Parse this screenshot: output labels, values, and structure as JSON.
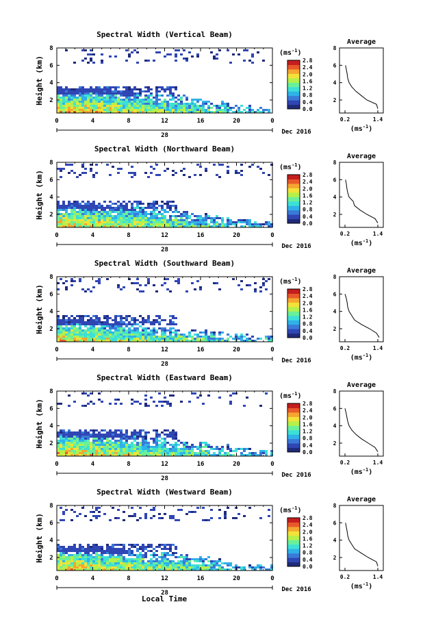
{
  "figure": {
    "xlabel": "Local Time",
    "day_label": "28",
    "month_label": "Dec 2016",
    "ylabel": "Height (km)",
    "colorbar_unit": "(ms",
    "colorbar_unit_exp": "-1",
    "avg_title": "Average",
    "avg_unit": "(ms",
    "avg_unit_exp": "-1",
    "avg_unit_close": ")",
    "colormap": [
      "#1f2a7a",
      "#2f46b4",
      "#3a7ad8",
      "#2fb2e8",
      "#3de0d6",
      "#6af09a",
      "#b6f04a",
      "#f2e23a",
      "#f5a630",
      "#e9592a",
      "#c41e1e"
    ]
  },
  "chart_data": [
    {
      "type": "heatmap",
      "title": "Spectral Width (Vertical Beam)",
      "x_ticks": [
        "0",
        "4",
        "8",
        "12",
        "16",
        "20",
        "0"
      ],
      "y_ticks": [
        "2",
        "4",
        "6",
        "8"
      ],
      "xlim": [
        0,
        24
      ],
      "ylim": [
        0.5,
        8
      ],
      "cbar_ticks": [
        "0.0",
        "0.4",
        "0.8",
        "1.2",
        "1.6",
        "2.0",
        "2.4",
        "2.8"
      ],
      "cbar_range": [
        0,
        2.8
      ],
      "layer_top_km": [
        3.4,
        3.4,
        3.3,
        3.1,
        2.8,
        2.6,
        2.2,
        1.9,
        1.5,
        1.2
      ],
      "upper_cloud": true,
      "avg_x_ticks": [
        "0.2",
        "1.4"
      ],
      "avg_y_ticks": [
        "2",
        "4",
        "6",
        "8"
      ],
      "avg_xlim": [
        0,
        1.6
      ],
      "avg_profile_km": [
        1.0,
        1.5,
        2.0,
        2.5,
        3.0,
        3.5,
        4.0,
        4.5,
        5.0,
        5.5,
        6.0
      ],
      "avg_profile_val": [
        1.4,
        1.35,
        1.0,
        0.8,
        0.6,
        0.45,
        0.35,
        0.3,
        0.28,
        0.25,
        0.22
      ]
    },
    {
      "type": "heatmap",
      "title": "Spectral Width (Northward Beam)",
      "x_ticks": [
        "0",
        "4",
        "8",
        "12",
        "16",
        "20",
        "0"
      ],
      "y_ticks": [
        "2",
        "4",
        "6",
        "8"
      ],
      "xlim": [
        0,
        24
      ],
      "ylim": [
        0.5,
        8
      ],
      "cbar_ticks": [
        "0.0",
        "0.4",
        "0.8",
        "1.2",
        "1.6",
        "2.0",
        "2.4",
        "2.8"
      ],
      "cbar_range": [
        0,
        2.8
      ],
      "layer_top_km": [
        3.4,
        3.3,
        3.1,
        3.0,
        2.8,
        2.5,
        2.1,
        1.8,
        1.5,
        1.2
      ],
      "upper_cloud": true,
      "avg_x_ticks": [
        "0.2",
        "1.4"
      ],
      "avg_y_ticks": [
        "2",
        "4",
        "6",
        "8"
      ],
      "avg_xlim": [
        0,
        1.6
      ],
      "avg_profile_km": [
        1.0,
        1.5,
        2.0,
        2.5,
        3.0,
        3.5,
        4.0,
        4.5,
        5.0,
        5.5,
        6.0
      ],
      "avg_profile_val": [
        1.4,
        1.3,
        1.0,
        0.75,
        0.55,
        0.5,
        0.35,
        0.3,
        0.27,
        0.25,
        0.22
      ]
    },
    {
      "type": "heatmap",
      "title": "Spectral Width (Southward Beam)",
      "x_ticks": [
        "0",
        "4",
        "8",
        "12",
        "16",
        "20",
        "0"
      ],
      "y_ticks": [
        "2",
        "4",
        "6",
        "8"
      ],
      "xlim": [
        0,
        24
      ],
      "ylim": [
        0.5,
        8
      ],
      "cbar_ticks": [
        "0.0",
        "0.4",
        "0.8",
        "1.2",
        "1.6",
        "2.0",
        "2.4",
        "2.8"
      ],
      "cbar_range": [
        0,
        2.8
      ],
      "layer_top_km": [
        3.2,
        3.0,
        2.8,
        2.6,
        2.4,
        2.2,
        2.0,
        1.8,
        1.5,
        1.3
      ],
      "upper_cloud": true,
      "avg_x_ticks": [
        "0.2",
        "1.4"
      ],
      "avg_y_ticks": [
        "2",
        "4",
        "6",
        "8"
      ],
      "avg_xlim": [
        0,
        1.6
      ],
      "avg_profile_km": [
        1.0,
        1.5,
        2.0,
        2.5,
        3.0,
        3.5,
        4.0,
        4.5,
        5.0,
        5.5,
        6.0
      ],
      "avg_profile_val": [
        1.45,
        1.35,
        1.1,
        0.8,
        0.55,
        0.45,
        0.35,
        0.3,
        0.28,
        0.25,
        0.2
      ]
    },
    {
      "type": "heatmap",
      "title": "Spectral Width (Eastward Beam)",
      "x_ticks": [
        "0",
        "4",
        "8",
        "12",
        "16",
        "20",
        "0"
      ],
      "y_ticks": [
        "2",
        "4",
        "6",
        "8"
      ],
      "xlim": [
        0,
        24
      ],
      "ylim": [
        0.5,
        8
      ],
      "cbar_ticks": [
        "0.0",
        "0.4",
        "0.8",
        "1.2",
        "1.6",
        "2.0",
        "2.4",
        "2.8"
      ],
      "cbar_range": [
        0,
        2.8
      ],
      "layer_top_km": [
        3.5,
        3.4,
        3.3,
        3.0,
        2.8,
        2.4,
        2.1,
        1.8,
        1.5,
        1.3
      ],
      "upper_cloud": true,
      "avg_x_ticks": [
        "0.2",
        "1.4"
      ],
      "avg_y_ticks": [
        "2",
        "4",
        "6",
        "8"
      ],
      "avg_xlim": [
        0,
        1.6
      ],
      "avg_profile_km": [
        1.0,
        1.5,
        2.0,
        2.5,
        3.0,
        3.5,
        4.0,
        4.5,
        5.0,
        5.5,
        6.0
      ],
      "avg_profile_val": [
        1.4,
        1.3,
        1.05,
        0.8,
        0.6,
        0.45,
        0.35,
        0.3,
        0.27,
        0.24,
        0.2
      ]
    },
    {
      "type": "heatmap",
      "title": "Spectral Width (Westward Beam)",
      "x_ticks": [
        "0",
        "4",
        "8",
        "12",
        "16",
        "20",
        "0"
      ],
      "y_ticks": [
        "2",
        "4",
        "6",
        "8"
      ],
      "xlim": [
        0,
        24
      ],
      "ylim": [
        0.5,
        8
      ],
      "cbar_ticks": [
        "0.0",
        "0.4",
        "0.8",
        "1.2",
        "1.6",
        "2.0",
        "2.4",
        "2.8"
      ],
      "cbar_range": [
        0,
        2.8
      ],
      "layer_top_km": [
        3.3,
        3.3,
        3.1,
        3.0,
        2.7,
        2.5,
        2.2,
        1.8,
        1.4,
        1.2
      ],
      "upper_cloud": true,
      "avg_x_ticks": [
        "0.2",
        "1.4"
      ],
      "avg_y_ticks": [
        "2",
        "4",
        "6",
        "8"
      ],
      "avg_xlim": [
        0,
        1.6
      ],
      "avg_profile_km": [
        1.0,
        1.5,
        2.0,
        2.5,
        3.0,
        3.5,
        4.0,
        4.5,
        5.0,
        5.5,
        6.0
      ],
      "avg_profile_val": [
        1.4,
        1.35,
        1.05,
        0.8,
        0.55,
        0.45,
        0.35,
        0.3,
        0.28,
        0.25,
        0.22
      ]
    }
  ]
}
